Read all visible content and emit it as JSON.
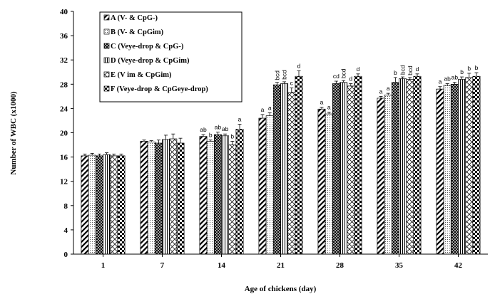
{
  "chart_data": {
    "type": "bar",
    "title": "",
    "xlabel": "Age of chickens (day)",
    "ylabel": "Number of WBC (x1000)",
    "ylim": [
      0,
      40
    ],
    "yticks": [
      0,
      4,
      8,
      12,
      16,
      20,
      24,
      28,
      32,
      36,
      40
    ],
    "categories": [
      "1",
      "7",
      "14",
      "21",
      "28",
      "35",
      "42"
    ],
    "legend_position": "top-left",
    "grid": false,
    "series": [
      {
        "name": "A (V- & CpG-)",
        "pattern": "diag-right-dense",
        "values": [
          16.2,
          18.6,
          19.4,
          22.4,
          23.9,
          25.7,
          27.2
        ],
        "errors": [
          0.3,
          0.2,
          0.3,
          0.6,
          0.3,
          0.3,
          0.4
        ],
        "labels": [
          "",
          "",
          "ab",
          "a",
          "a",
          "a",
          "a"
        ]
      },
      {
        "name": "B (V- & CpGim)",
        "pattern": "dots",
        "values": [
          16.3,
          18.5,
          18.6,
          22.8,
          23.1,
          26.2,
          27.8
        ],
        "errors": [
          0.3,
          0.2,
          0.2,
          0.5,
          0.3,
          0.3,
          0.3
        ],
        "labels": [
          "",
          "",
          "b",
          "a",
          "a",
          "a",
          "ab"
        ]
      },
      {
        "name": "C (Veye-drop & CpG-)",
        "pattern": "crosshatch",
        "values": [
          16.2,
          18.3,
          19.7,
          27.9,
          28.1,
          28.3,
          28.0
        ],
        "errors": [
          0.3,
          0.5,
          0.4,
          0.4,
          0.4,
          0.8,
          0.3
        ],
        "labels": [
          "",
          "",
          "ab",
          "bcd",
          "cd",
          "b",
          "ab"
        ]
      },
      {
        "name": "D (Veye-drop & CpGim)",
        "pattern": "vertical",
        "values": [
          16.4,
          18.9,
          19.5,
          28.1,
          28.3,
          28.9,
          28.8
        ],
        "errors": [
          0.3,
          0.7,
          0.3,
          0.3,
          0.3,
          0.3,
          0.4
        ],
        "labels": [
          "",
          "",
          "ab",
          "bcd",
          "bcd",
          "bcd",
          "b"
        ]
      },
      {
        "name": "E (V im & CpGim)",
        "pattern": "diag-cross",
        "values": [
          16.2,
          19.0,
          18.0,
          26.7,
          27.7,
          28.8,
          29.1
        ],
        "errors": [
          0.3,
          0.8,
          0.6,
          0.7,
          0.4,
          0.3,
          0.7
        ],
        "labels": [
          "",
          "",
          "b",
          "c",
          "d",
          "bcd",
          "b"
        ]
      },
      {
        "name": "F (Veye-drop & CpGeye-drop)",
        "pattern": "checker",
        "values": [
          16.2,
          18.3,
          20.6,
          29.3,
          29.3,
          29.3,
          29.3
        ],
        "errors": [
          0.3,
          0.8,
          0.8,
          0.9,
          0.4,
          0.4,
          0.6
        ],
        "labels": [
          "",
          "",
          "a",
          "d",
          "d",
          "d",
          "b"
        ]
      }
    ]
  }
}
